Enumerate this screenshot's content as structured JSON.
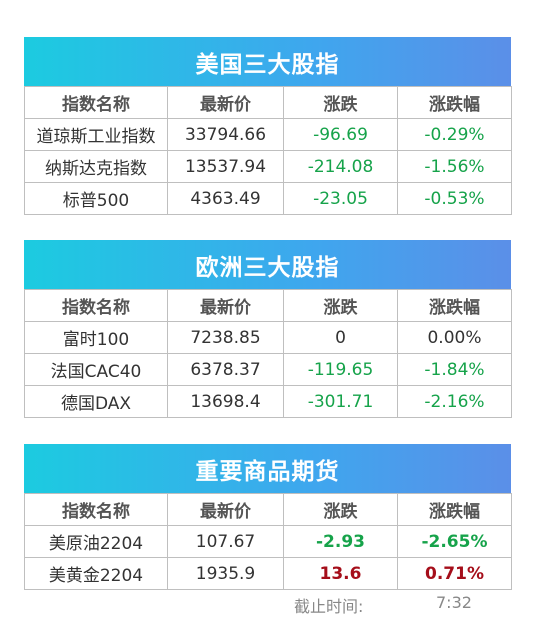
{
  "panels": [
    {
      "title": "美国三大股指",
      "headers": [
        "指数名称",
        "最新价",
        "涨跌",
        "涨跌幅"
      ],
      "rows": [
        [
          "道琼斯工业指数",
          "33794.66",
          "-96.69",
          "-0.29%"
        ],
        [
          "纳斯达克指数",
          "13537.94",
          "-214.08",
          "-1.56%"
        ],
        [
          "标普500",
          "4363.49",
          "-23.05",
          "-0.53%"
        ]
      ]
    },
    {
      "title": "欧洲三大股指",
      "headers": [
        "指数名称",
        "最新价",
        "涨跌",
        "涨跌幅"
      ],
      "rows": [
        [
          "富时100",
          "7238.85",
          "0",
          "0.00%"
        ],
        [
          "法国CAC40",
          "6378.37",
          "-119.65",
          "-1.84%"
        ],
        [
          "德国DAX",
          "13698.4",
          "-301.71",
          "-2.16%"
        ]
      ]
    },
    {
      "title": "重要商品期货",
      "headers": [
        "指数名称",
        "最新价",
        "涨跌",
        "涨跌幅"
      ],
      "rows": [
        [
          "美原油2204",
          "107.67",
          "-2.93",
          "-2.65%"
        ],
        [
          "美黄金2204",
          "1935.9",
          "13.6",
          "0.71%"
        ]
      ]
    }
  ],
  "footer": {
    "label": "截止时间:",
    "time": "7:32"
  },
  "colors": {
    "header_gradient_start": "#1ccbe0",
    "header_gradient_end": "#5b8fe8",
    "down": "#16a34a",
    "up": "#a50e1a"
  }
}
